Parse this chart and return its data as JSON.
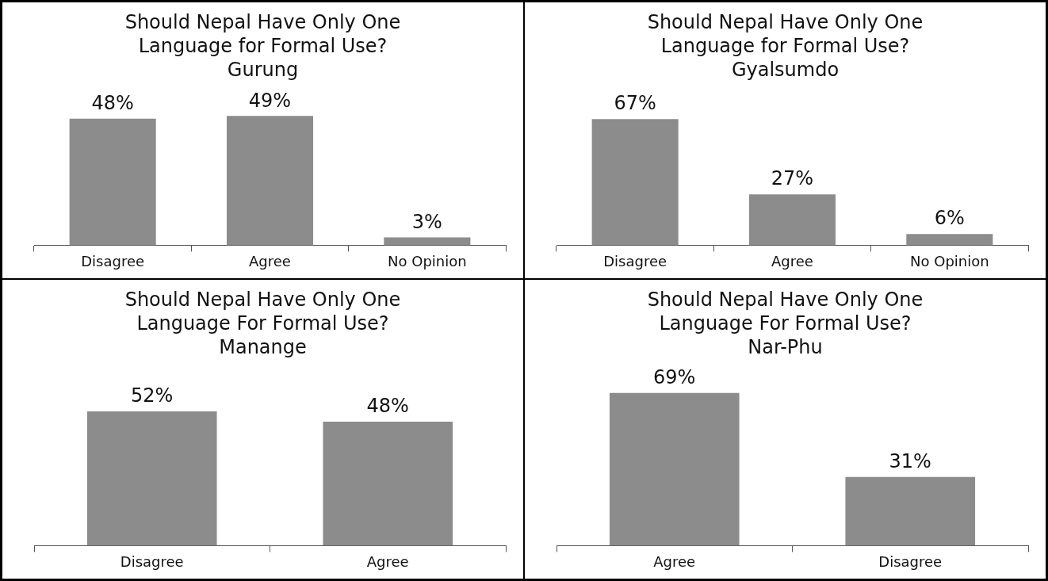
{
  "chart_data": [
    {
      "type": "bar",
      "title": "Should Nepal Have Only One Language for Formal Use?",
      "subtitle": "Gurung",
      "categories": [
        "Disagree",
        "Agree",
        "No Opinion"
      ],
      "values": [
        48,
        49,
        3
      ],
      "value_labels": [
        "48%",
        "49%",
        "3%"
      ],
      "color": "#8c8c8c",
      "grid": false,
      "legend": false,
      "tick_labels": "x"
    },
    {
      "type": "bar",
      "title": "Should Nepal Have Only One Language for Formal Use?",
      "subtitle": "Gyalsumdo",
      "categories": [
        "Disagree",
        "Agree",
        "No Opinion"
      ],
      "values": [
        67,
        27,
        6
      ],
      "value_labels": [
        "67%",
        "27%",
        "6%"
      ],
      "color": "#8c8c8c",
      "grid": false,
      "legend": false,
      "tick_labels": "x"
    },
    {
      "type": "bar",
      "title": "Should Nepal Have Only One Language For Formal Use?",
      "subtitle": "Manange",
      "categories": [
        "Disagree",
        "Agree"
      ],
      "values": [
        52,
        48
      ],
      "value_labels": [
        "52%",
        "48%"
      ],
      "color": "#8c8c8c",
      "grid": false,
      "legend": false,
      "tick_labels": "x"
    },
    {
      "type": "bar",
      "title": "Should Nepal Have Only One Language For Formal Use?",
      "subtitle": "Nar-Phu",
      "categories": [
        "Agree",
        "Disagree"
      ],
      "values": [
        69,
        31
      ],
      "value_labels": [
        "69%",
        "31%"
      ],
      "color": "#8c8c8c",
      "grid": false,
      "legend": false,
      "tick_labels": "x"
    }
  ]
}
